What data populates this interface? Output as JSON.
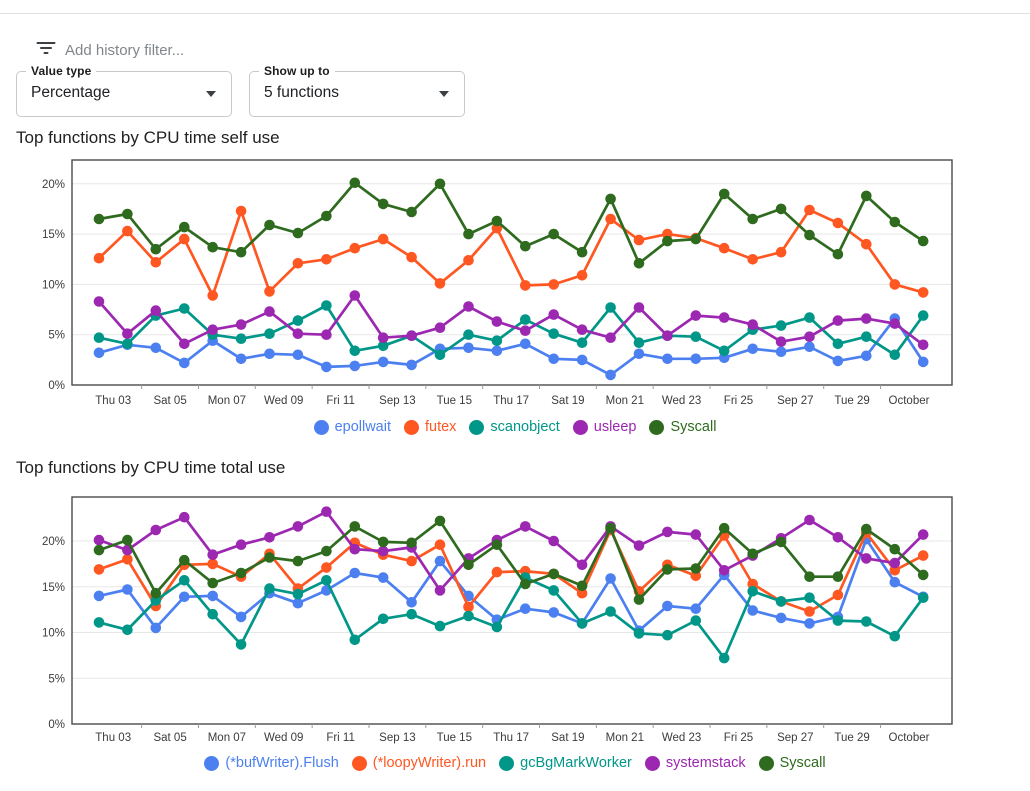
{
  "filter_bar": {
    "icon": "filter-list-icon",
    "placeholder": "Add history filter..."
  },
  "controls": {
    "value_type": {
      "label": "Value type",
      "value": "Percentage"
    },
    "show_up_to": {
      "label": "Show up to",
      "value": "5 functions"
    }
  },
  "chart_data": [
    {
      "type": "line",
      "title": "Top functions by CPU time self use",
      "unit": "%",
      "ylim": [
        0,
        22.4
      ],
      "yticks": [
        "0%",
        "5%",
        "10%",
        "15%",
        "20%"
      ],
      "grid": true,
      "legend_position": "bottom",
      "x_labels": [
        "Thu 03",
        "Sat 05",
        "Mon 07",
        "Wed 09",
        "Fri 11",
        "Sep 13",
        "Tue 15",
        "Thu 17",
        "Sat 19",
        "Mon 21",
        "Wed 23",
        "Fri 25",
        "Sep 27",
        "Tue 29",
        "October"
      ],
      "points_per_x_label": 2,
      "series": [
        {
          "name": "epollwait",
          "color": "#4C80F0",
          "values": [
            3.2,
            4.0,
            3.7,
            2.2,
            4.4,
            2.6,
            3.1,
            3.0,
            1.8,
            1.9,
            2.3,
            2.0,
            3.6,
            3.7,
            3.4,
            4.1,
            2.6,
            2.5,
            1.0,
            3.1,
            2.6,
            2.6,
            2.7,
            3.6,
            3.3,
            3.8,
            2.4,
            2.9,
            6.6,
            2.3
          ]
        },
        {
          "name": "futex",
          "color": "#FF5722",
          "values": [
            12.6,
            15.3,
            12.2,
            14.5,
            8.9,
            17.3,
            9.3,
            12.1,
            12.5,
            13.6,
            14.5,
            12.7,
            10.1,
            12.4,
            15.6,
            9.9,
            10.0,
            10.9,
            16.5,
            14.4,
            15.0,
            14.6,
            13.6,
            12.5,
            13.2,
            17.4,
            16.1,
            14.0,
            10.0,
            9.2
          ]
        },
        {
          "name": "scanobject",
          "color": "#009688",
          "values": [
            4.7,
            4.1,
            6.9,
            7.6,
            5.0,
            4.6,
            5.1,
            6.4,
            7.9,
            3.4,
            3.9,
            4.9,
            3.0,
            5.0,
            4.4,
            6.5,
            5.1,
            4.2,
            7.7,
            4.2,
            4.9,
            4.8,
            3.4,
            5.5,
            5.9,
            6.7,
            4.1,
            4.8,
            3.0,
            6.9
          ]
        },
        {
          "name": "usleep",
          "color": "#9C27B0",
          "values": [
            8.3,
            5.1,
            7.4,
            4.1,
            5.5,
            6.0,
            7.3,
            5.1,
            5.0,
            8.9,
            4.7,
            4.9,
            5.7,
            7.8,
            6.3,
            5.4,
            7.0,
            5.5,
            4.7,
            7.7,
            4.9,
            6.9,
            6.7,
            6.0,
            4.3,
            4.8,
            6.4,
            6.6,
            6.1,
            4.0
          ]
        },
        {
          "name": "Syscall",
          "color": "#2E6B1E",
          "values": [
            16.5,
            17.0,
            13.5,
            15.7,
            13.7,
            13.2,
            15.9,
            15.1,
            16.8,
            20.1,
            18.0,
            17.2,
            20.0,
            15.0,
            16.3,
            13.8,
            15.0,
            13.2,
            18.5,
            12.1,
            14.3,
            14.5,
            19.0,
            16.5,
            17.5,
            14.9,
            13.0,
            18.8,
            16.2,
            14.3
          ]
        }
      ]
    },
    {
      "type": "line",
      "title": "Top functions by CPU time total use",
      "unit": "%",
      "ylim": [
        0,
        24.8
      ],
      "yticks": [
        "0%",
        "5%",
        "10%",
        "15%",
        "20%"
      ],
      "grid": true,
      "legend_position": "bottom",
      "x_labels": [
        "Thu 03",
        "Sat 05",
        "Mon 07",
        "Wed 09",
        "Fri 11",
        "Sep 13",
        "Tue 15",
        "Thu 17",
        "Sat 19",
        "Mon 21",
        "Wed 23",
        "Fri 25",
        "Sep 27",
        "Tue 29",
        "October"
      ],
      "points_per_x_label": 2,
      "series": [
        {
          "name": "(*bufWriter).Flush",
          "color": "#4C80F0",
          "values": [
            14.0,
            14.7,
            10.5,
            13.9,
            14.0,
            11.7,
            14.3,
            13.2,
            14.6,
            16.5,
            16.0,
            13.3,
            17.8,
            14.0,
            11.4,
            12.6,
            12.2,
            11.0,
            15.9,
            10.2,
            12.9,
            12.6,
            16.3,
            12.4,
            11.6,
            11.0,
            11.7,
            20.2,
            15.5,
            13.9
          ]
        },
        {
          "name": "(*loopyWriter).run",
          "color": "#FF5722",
          "values": [
            16.9,
            18.0,
            12.9,
            17.4,
            17.5,
            16.1,
            18.6,
            14.8,
            17.1,
            19.8,
            18.5,
            17.8,
            19.6,
            12.8,
            16.6,
            16.7,
            16.4,
            14.3,
            21.2,
            14.5,
            17.4,
            16.2,
            20.6,
            15.3,
            13.4,
            12.3,
            14.1,
            20.9,
            16.8,
            18.4
          ]
        },
        {
          "name": "gcBgMarkWorker",
          "color": "#009688",
          "values": [
            11.1,
            10.3,
            13.5,
            15.7,
            12.0,
            8.7,
            14.8,
            14.2,
            15.7,
            9.2,
            11.5,
            12.0,
            10.7,
            11.8,
            10.6,
            16.0,
            14.6,
            11.0,
            12.3,
            9.9,
            9.7,
            11.3,
            7.2,
            14.5,
            13.4,
            13.8,
            11.3,
            11.2,
            9.6,
            13.8
          ]
        },
        {
          "name": "systemstack",
          "color": "#9C27B0",
          "values": [
            20.1,
            19.0,
            21.2,
            22.6,
            18.5,
            19.6,
            20.4,
            21.6,
            23.2,
            19.1,
            18.9,
            19.3,
            14.6,
            18.1,
            20.1,
            21.6,
            20.0,
            17.4,
            21.6,
            19.5,
            21.0,
            20.7,
            16.8,
            18.4,
            20.3,
            22.3,
            20.4,
            18.1,
            17.6,
            20.7
          ]
        },
        {
          "name": "Syscall",
          "color": "#2E6B1E",
          "values": [
            19.0,
            20.1,
            14.3,
            17.9,
            15.4,
            16.5,
            18.2,
            17.8,
            18.9,
            21.6,
            19.9,
            19.8,
            22.2,
            17.4,
            19.6,
            15.3,
            16.4,
            15.1,
            21.4,
            13.6,
            16.9,
            17.0,
            21.4,
            18.6,
            19.9,
            16.1,
            16.1,
            21.3,
            19.1,
            16.3
          ]
        }
      ]
    }
  ]
}
